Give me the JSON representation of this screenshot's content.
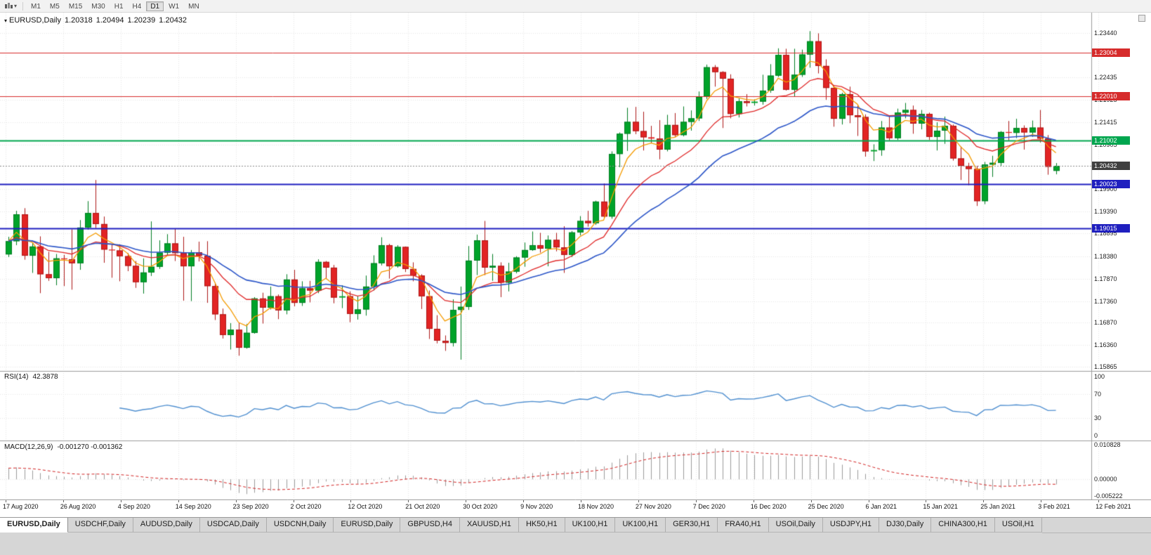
{
  "toolbar": {
    "timeframes": [
      "M1",
      "M5",
      "M15",
      "M30",
      "H1",
      "H4",
      "D1",
      "W1",
      "MN"
    ],
    "active_timeframe": "D1"
  },
  "chart": {
    "title": "EURUSD,Daily",
    "ohlc": {
      "open": "1.20318",
      "high": "1.20494",
      "low": "1.20239",
      "close": "1.20432"
    },
    "price_axis": {
      "ticks": [
        "1.23440",
        "1.22435",
        "1.21925",
        "1.21415",
        "1.20905",
        "1.19900",
        "1.19390",
        "1.18895",
        "1.18380",
        "1.17870",
        "1.17360",
        "1.16870",
        "1.16360",
        "1.15865"
      ],
      "current_price": {
        "value": "1.20432",
        "color": "#404040"
      },
      "levels": [
        {
          "value": "1.23004",
          "color": "#d62b2b",
          "width": 1
        },
        {
          "value": "1.22010",
          "color": "#d62b2b",
          "width": 1
        },
        {
          "value": "1.21002",
          "color": "#00a64f",
          "width": 2
        },
        {
          "value": "1.20023",
          "color": "#1f1fbf",
          "width": 2
        },
        {
          "value": "1.19015",
          "color": "#1f1fbf",
          "width": 2
        }
      ]
    },
    "date_axis": [
      "17 Aug 2020",
      "26 Aug 2020",
      "4 Sep 2020",
      "14 Sep 2020",
      "23 Sep 2020",
      "2 Oct 2020",
      "12 Oct 2020",
      "21 Oct 2020",
      "30 Oct 2020",
      "9 Nov 2020",
      "18 Nov 2020",
      "27 Nov 2020",
      "7 Dec 2020",
      "16 Dec 2020",
      "25 Dec 2020",
      "6 Jan 2021",
      "15 Jan 2021",
      "25 Jan 2021",
      "3 Feb 2021",
      "12 Feb 2021"
    ]
  },
  "rsi": {
    "label": "RSI(14)",
    "value": "42.3878",
    "color": "#4f8fd0",
    "ticks": [
      {
        "text": "100",
        "value": 100
      },
      {
        "text": "70",
        "value": 70
      },
      {
        "text": "30",
        "value": 30
      },
      {
        "text": "0",
        "value": 0
      }
    ],
    "guides": [
      70,
      30
    ]
  },
  "macd": {
    "label": "MACD(12,26,9)",
    "values": "-0.001270 -0.001362",
    "ticks": [
      {
        "text": "0.010828",
        "value": 0.010828
      },
      {
        "text": "0.00000",
        "value": 0
      },
      {
        "text": "-0.005222",
        "value": -0.005222
      }
    ]
  },
  "tabs": {
    "active_index": 0,
    "items": [
      "EURUSD,Daily",
      "USDCHF,Daily",
      "AUDUSD,Daily",
      "USDCAD,Daily",
      "USDCNH,Daily",
      "EURUSD,Daily",
      "GBPUSD,H4",
      "XAUUSD,H1",
      "HK50,H1",
      "UK100,H1",
      "UK100,H1",
      "GER30,H1",
      "FRA40,H1",
      "USOil,Daily",
      "USDJPY,H1",
      "DJ30,Daily",
      "CHINA300,H1",
      "USOil,H1"
    ]
  },
  "chart_data": {
    "type": "candlestick",
    "symbol": "EURUSD",
    "timeframe": "Daily",
    "title": "EURUSD,Daily",
    "ylim": [
      1.15865,
      1.2344
    ],
    "current_bar": {
      "open": 1.20318,
      "high": 1.20494,
      "low": 1.20239,
      "close": 1.20432
    },
    "levels": [
      1.23004,
      1.2201,
      1.21002,
      1.20023,
      1.19015
    ],
    "overlays": [
      {
        "name": "MA fast",
        "type": "ema",
        "period": 5,
        "color": "#f59b00"
      },
      {
        "name": "MA medium",
        "type": "ema",
        "period": 13,
        "color": "#e02828"
      },
      {
        "name": "MA slow",
        "type": "ema",
        "period": 26,
        "color": "#2b55c8"
      }
    ],
    "indicators": [
      {
        "name": "RSI",
        "period": 14,
        "current": 42.3878,
        "scale": [
          0,
          100
        ],
        "guides": [
          70,
          30
        ]
      },
      {
        "name": "MACD",
        "fast": 12,
        "slow": 26,
        "signal": 9,
        "current_macd": -0.00127,
        "current_signal": -0.001362,
        "scale_max": 0.010828,
        "scale_min": -0.005222
      }
    ],
    "candles": [
      [
        1.1842,
        1.1882,
        1.1836,
        1.1872
      ],
      [
        1.1872,
        1.1941,
        1.1863,
        1.1933
      ],
      [
        1.1933,
        1.1947,
        1.183,
        1.1839
      ],
      [
        1.1839,
        1.1868,
        1.18,
        1.186
      ],
      [
        1.186,
        1.1883,
        1.1754,
        1.1797
      ],
      [
        1.1797,
        1.1848,
        1.1782,
        1.1788
      ],
      [
        1.1788,
        1.1843,
        1.1772,
        1.1833
      ],
      [
        1.1833,
        1.1841,
        1.177,
        1.1831
      ],
      [
        1.1831,
        1.1899,
        1.1762,
        1.1822
      ],
      [
        1.1822,
        1.192,
        1.1807,
        1.1903
      ],
      [
        1.1903,
        1.1963,
        1.1898,
        1.1936
      ],
      [
        1.1936,
        1.2011,
        1.1902,
        1.1911
      ],
      [
        1.1911,
        1.1928,
        1.1823,
        1.1853
      ],
      [
        1.1853,
        1.1865,
        1.1789,
        1.1851
      ],
      [
        1.1851,
        1.1865,
        1.1781,
        1.1838
      ],
      [
        1.1838,
        1.1845,
        1.1804,
        1.1816
      ],
      [
        1.1816,
        1.1827,
        1.1766,
        1.1779
      ],
      [
        1.1779,
        1.1833,
        1.1753,
        1.1801
      ],
      [
        1.1801,
        1.1917,
        1.1793,
        1.1814
      ],
      [
        1.1814,
        1.1874,
        1.1809,
        1.1846
      ],
      [
        1.1846,
        1.1888,
        1.1839,
        1.1867
      ],
      [
        1.1867,
        1.19,
        1.1827,
        1.1845
      ],
      [
        1.1845,
        1.1882,
        1.1737,
        1.1815
      ],
      [
        1.1815,
        1.1852,
        1.1736,
        1.1847
      ],
      [
        1.1847,
        1.1871,
        1.1826,
        1.1839
      ],
      [
        1.1839,
        1.1872,
        1.1732,
        1.177
      ],
      [
        1.177,
        1.1778,
        1.1693,
        1.1706
      ],
      [
        1.1706,
        1.1719,
        1.1651,
        1.1659
      ],
      [
        1.1659,
        1.1686,
        1.1626,
        1.1671
      ],
      [
        1.1671,
        1.1687,
        1.1612,
        1.163
      ],
      [
        1.163,
        1.1684,
        1.1628,
        1.1664
      ],
      [
        1.1664,
        1.1745,
        1.1662,
        1.1742
      ],
      [
        1.1742,
        1.1755,
        1.1685,
        1.1721
      ],
      [
        1.1721,
        1.1769,
        1.1717,
        1.1747
      ],
      [
        1.1747,
        1.1751,
        1.1695,
        1.1715
      ],
      [
        1.1715,
        1.1797,
        1.1706,
        1.1785
      ],
      [
        1.1785,
        1.1807,
        1.1724,
        1.1732
      ],
      [
        1.1732,
        1.1781,
        1.1725,
        1.1765
      ],
      [
        1.1765,
        1.1782,
        1.1733,
        1.176
      ],
      [
        1.176,
        1.1831,
        1.1754,
        1.1825
      ],
      [
        1.1825,
        1.1827,
        1.1786,
        1.1812
      ],
      [
        1.1812,
        1.1818,
        1.1731,
        1.1744
      ],
      [
        1.1744,
        1.1772,
        1.172,
        1.1747
      ],
      [
        1.1747,
        1.1758,
        1.1688,
        1.1707
      ],
      [
        1.1707,
        1.1747,
        1.1694,
        1.1717
      ],
      [
        1.1717,
        1.1794,
        1.1703,
        1.1769
      ],
      [
        1.1769,
        1.184,
        1.176,
        1.1822
      ],
      [
        1.1822,
        1.1881,
        1.1817,
        1.1863
      ],
      [
        1.1863,
        1.1866,
        1.1787,
        1.1815
      ],
      [
        1.1815,
        1.1863,
        1.1812,
        1.1859
      ],
      [
        1.1859,
        1.186,
        1.1802,
        1.1809
      ],
      [
        1.1809,
        1.1824,
        1.1781,
        1.1794
      ],
      [
        1.1794,
        1.1797,
        1.1718,
        1.1747
      ],
      [
        1.1747,
        1.176,
        1.165,
        1.1673
      ],
      [
        1.1673,
        1.1704,
        1.164,
        1.1646
      ],
      [
        1.1646,
        1.1658,
        1.1623,
        1.1641
      ],
      [
        1.1641,
        1.174,
        1.1633,
        1.1716
      ],
      [
        1.1716,
        1.1769,
        1.1603,
        1.1723
      ],
      [
        1.1723,
        1.1861,
        1.1716,
        1.1828
      ],
      [
        1.1828,
        1.1887,
        1.1795,
        1.1874
      ],
      [
        1.1874,
        1.1918,
        1.1795,
        1.1812
      ],
      [
        1.1812,
        1.1843,
        1.1782,
        1.1816
      ],
      [
        1.1816,
        1.1824,
        1.1745,
        1.1778
      ],
      [
        1.1778,
        1.1823,
        1.1758,
        1.1803
      ],
      [
        1.1803,
        1.1838,
        1.1799,
        1.1835
      ],
      [
        1.1835,
        1.1869,
        1.1814,
        1.1852
      ],
      [
        1.1852,
        1.1894,
        1.185,
        1.1863
      ],
      [
        1.1863,
        1.1891,
        1.1846,
        1.1855
      ],
      [
        1.1855,
        1.1885,
        1.1815,
        1.1875
      ],
      [
        1.1875,
        1.1891,
        1.1849,
        1.1858
      ],
      [
        1.1858,
        1.1906,
        1.18,
        1.1841
      ],
      [
        1.1841,
        1.1895,
        1.1836,
        1.1892
      ],
      [
        1.1892,
        1.1929,
        1.1885,
        1.1918
      ],
      [
        1.1918,
        1.1941,
        1.1905,
        1.1913
      ],
      [
        1.1913,
        1.1964,
        1.1909,
        1.1962
      ],
      [
        1.1962,
        1.2003,
        1.1924,
        1.1928
      ],
      [
        1.1928,
        1.2076,
        1.1923,
        1.207
      ],
      [
        1.207,
        1.2119,
        1.204,
        1.2116
      ],
      [
        1.2116,
        1.2175,
        1.2077,
        1.2143
      ],
      [
        1.2143,
        1.2177,
        1.2115,
        1.2122
      ],
      [
        1.2122,
        1.2166,
        1.2078,
        1.2108
      ],
      [
        1.2108,
        1.2134,
        1.2095,
        1.2105
      ],
      [
        1.2105,
        1.2147,
        1.2058,
        1.208
      ],
      [
        1.208,
        1.2159,
        1.2076,
        1.2136
      ],
      [
        1.2136,
        1.2163,
        1.2109,
        1.2113
      ],
      [
        1.2113,
        1.2178,
        1.211,
        1.2143
      ],
      [
        1.2143,
        1.2169,
        1.2123,
        1.2151
      ],
      [
        1.2151,
        1.2212,
        1.2145,
        1.22
      ],
      [
        1.22,
        1.2273,
        1.2195,
        1.2267
      ],
      [
        1.2267,
        1.2272,
        1.2223,
        1.2256
      ],
      [
        1.2256,
        1.2258,
        1.2129,
        1.2241
      ],
      [
        1.2241,
        1.2251,
        1.2151,
        1.2161
      ],
      [
        1.2161,
        1.2196,
        1.2153,
        1.219
      ],
      [
        1.219,
        1.2206,
        1.2178,
        1.2186
      ],
      [
        1.2186,
        1.2194,
        1.218,
        1.2189
      ],
      [
        1.2189,
        1.225,
        1.2182,
        1.2214
      ],
      [
        1.2214,
        1.2274,
        1.2209,
        1.2248
      ],
      [
        1.2248,
        1.231,
        1.2245,
        1.2295
      ],
      [
        1.2295,
        1.2309,
        1.2214,
        1.2216
      ],
      [
        1.2216,
        1.2309,
        1.22,
        1.225
      ],
      [
        1.225,
        1.2307,
        1.2245,
        1.2296
      ],
      [
        1.2296,
        1.2349,
        1.2266,
        1.2326
      ],
      [
        1.2326,
        1.2344,
        1.2253,
        1.227
      ],
      [
        1.227,
        1.2285,
        1.2193,
        1.222
      ],
      [
        1.222,
        1.2226,
        1.2132,
        1.215
      ],
      [
        1.215,
        1.2209,
        1.2137,
        1.2206
      ],
      [
        1.2206,
        1.2223,
        1.214,
        1.2158
      ],
      [
        1.2158,
        1.218,
        1.2111,
        1.2154
      ],
      [
        1.2154,
        1.216,
        1.2064,
        1.2076
      ],
      [
        1.2076,
        1.2092,
        1.2054,
        1.2079
      ],
      [
        1.2079,
        1.2145,
        1.2066,
        1.213
      ],
      [
        1.213,
        1.2158,
        1.2101,
        1.2106
      ],
      [
        1.2106,
        1.2173,
        1.2102,
        1.2164
      ],
      [
        1.2164,
        1.2186,
        1.2151,
        1.217
      ],
      [
        1.217,
        1.218,
        1.2116,
        1.2139
      ],
      [
        1.2139,
        1.217,
        1.2126,
        1.2161
      ],
      [
        1.2161,
        1.2164,
        1.2102,
        1.2109
      ],
      [
        1.2109,
        1.2142,
        1.2078,
        1.2123
      ],
      [
        1.2123,
        1.2155,
        1.2093,
        1.2134
      ],
      [
        1.2134,
        1.2137,
        1.2055,
        1.206
      ],
      [
        1.206,
        1.2087,
        1.2011,
        1.2043
      ],
      [
        1.2043,
        1.205,
        1.1999,
        1.2036
      ],
      [
        1.2036,
        1.2043,
        1.1952,
        1.1963
      ],
      [
        1.1963,
        1.2052,
        1.1956,
        1.2046
      ],
      [
        1.2046,
        1.2066,
        1.2018,
        1.205
      ],
      [
        1.205,
        1.2122,
        1.2043,
        1.212
      ],
      [
        1.212,
        1.2145,
        1.2099,
        1.2118
      ],
      [
        1.2118,
        1.215,
        1.2106,
        1.2129
      ],
      [
        1.2129,
        1.2135,
        1.208,
        1.2119
      ],
      [
        1.2119,
        1.2146,
        1.2109,
        1.213
      ],
      [
        1.213,
        1.217,
        1.2096,
        1.2105
      ],
      [
        1.2105,
        1.2113,
        1.2023,
        1.2041
      ],
      [
        1.20318,
        1.20494,
        1.20239,
        1.20432
      ]
    ]
  }
}
